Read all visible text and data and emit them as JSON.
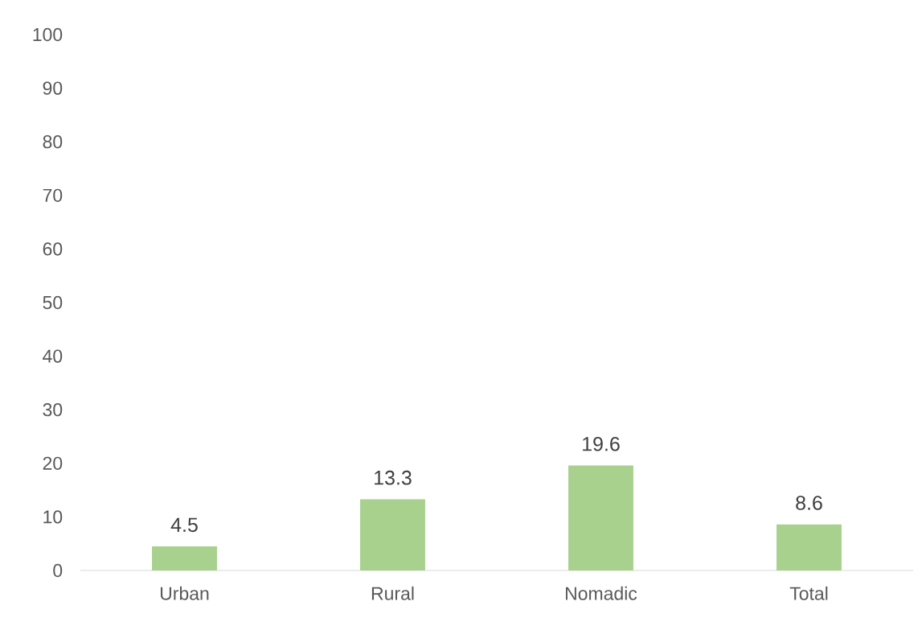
{
  "chart_data": {
    "type": "bar",
    "categories": [
      "Urban",
      "Rural",
      "Nomadic",
      "Total"
    ],
    "values": [
      4.5,
      13.3,
      19.6,
      8.6
    ],
    "color": "#a9d18e",
    "ylim": [
      0,
      100
    ],
    "yticks": [
      0,
      10,
      20,
      30,
      40,
      50,
      60,
      70,
      80,
      90,
      100
    ],
    "data_labels": true
  }
}
